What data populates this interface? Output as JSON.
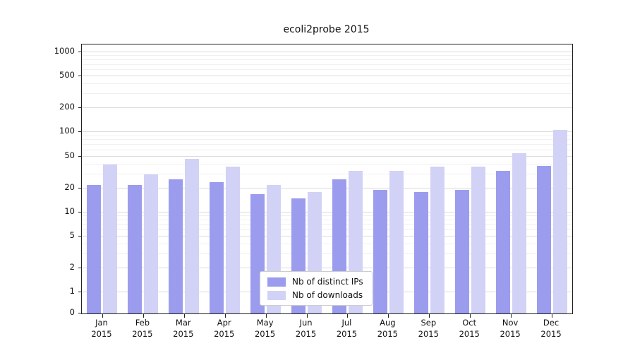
{
  "title": "ecoli2probe 2015",
  "chart_data": {
    "type": "bar",
    "title": "ecoli2probe 2015",
    "categories": [
      "Jan",
      "Feb",
      "Mar",
      "Apr",
      "May",
      "Jun",
      "Jul",
      "Aug",
      "Sep",
      "Oct",
      "Nov",
      "Dec"
    ],
    "category_year": "2015",
    "series": [
      {
        "name": "Nb of distinct IPs",
        "color": "#9c9cee",
        "values": [
          22,
          22,
          26,
          24,
          17,
          15,
          26,
          19,
          18,
          19,
          33,
          38
        ]
      },
      {
        "name": "Nb of downloads",
        "color": "#d2d2f6",
        "values": [
          40,
          30,
          47,
          37,
          22,
          18,
          33,
          33,
          37,
          37,
          55,
          108
        ]
      }
    ],
    "y_scale": "symlog",
    "y_ticks": [
      0,
      1,
      2,
      5,
      10,
      20,
      50,
      100,
      200,
      500,
      1000
    ],
    "y_minor_ticks": [
      3,
      4,
      6,
      7,
      8,
      9,
      30,
      40,
      60,
      70,
      80,
      90,
      300,
      400,
      600,
      700,
      800,
      900
    ],
    "ylim": [
      0,
      1250
    ],
    "grid": true,
    "legend_position": "lower center",
    "colors": {
      "grid_major": "#dcdcdc",
      "grid_minor": "#f0f0f0",
      "axis": "#222222"
    }
  }
}
